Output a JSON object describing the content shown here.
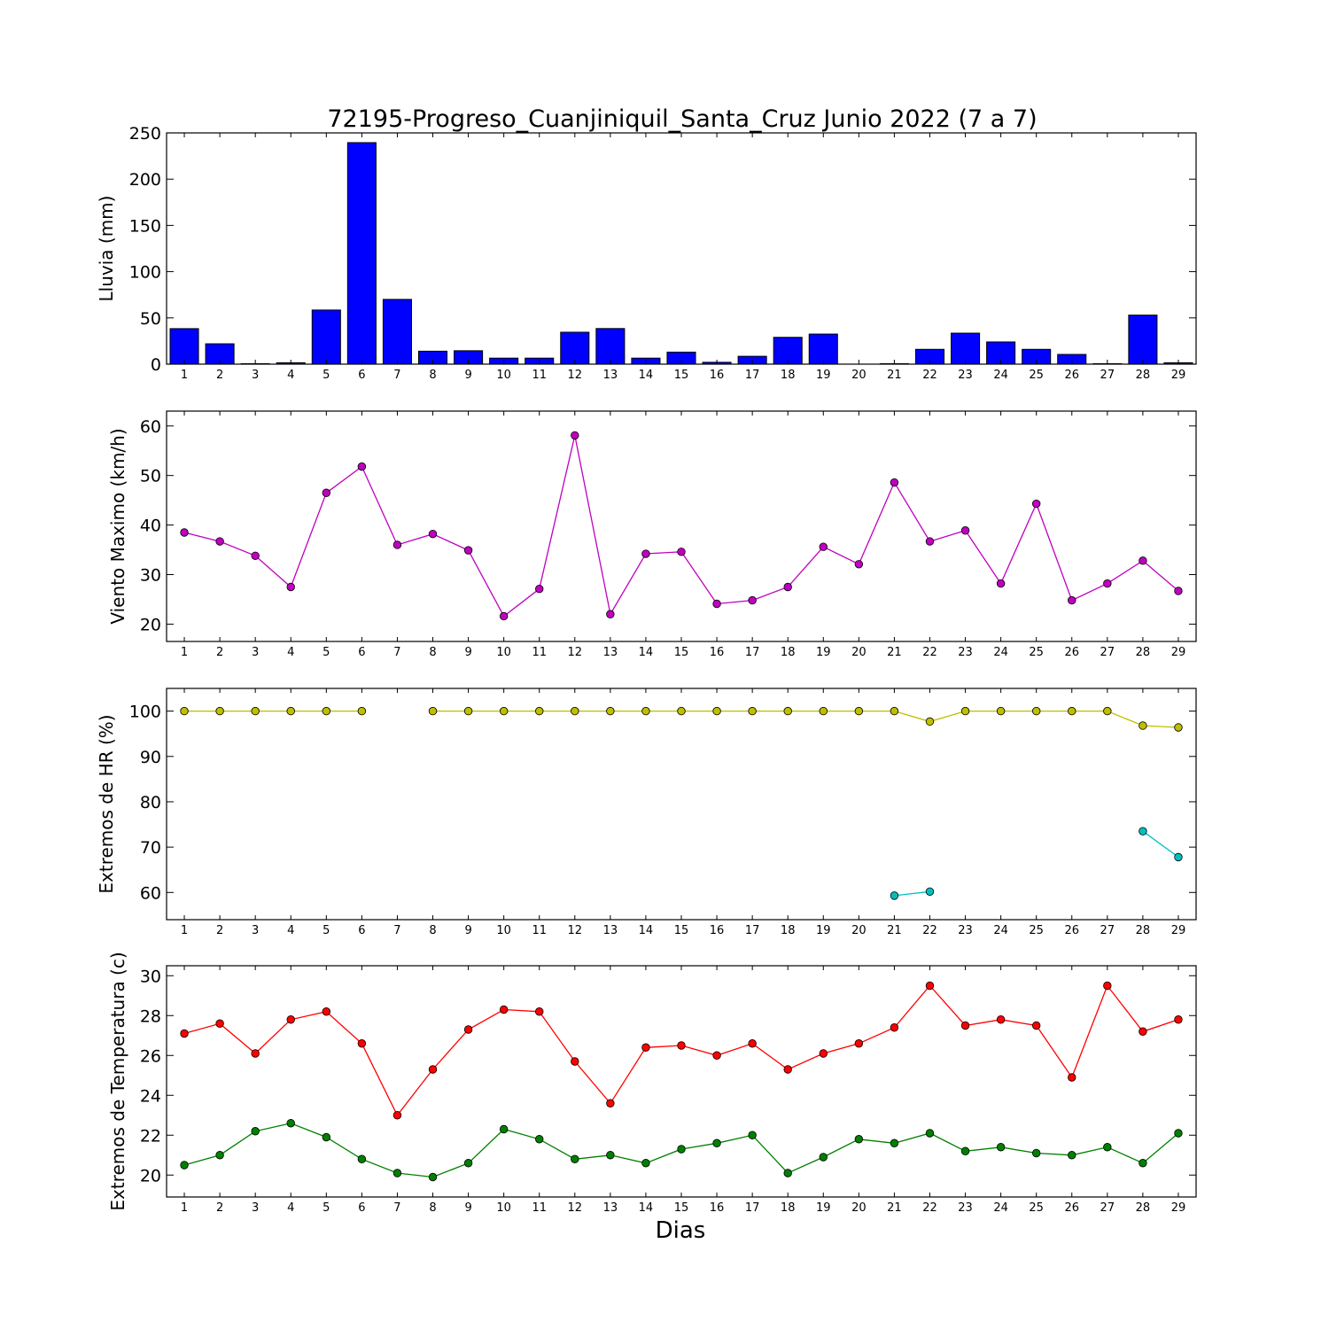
{
  "title": "72195-Progreso_Cuanjiniquil_Santa_Cruz Junio 2022  (7 a 7)",
  "xlabel": "Dias",
  "chart_data": [
    {
      "type": "bar",
      "ylabel": "Lluvia (mm)",
      "categories": [
        1,
        2,
        3,
        4,
        5,
        6,
        7,
        8,
        9,
        10,
        11,
        12,
        13,
        14,
        15,
        16,
        17,
        18,
        19,
        20,
        21,
        22,
        23,
        24,
        25,
        26,
        27,
        28,
        29
      ],
      "ylim": [
        0,
        250
      ],
      "yticks": [
        0,
        50,
        100,
        150,
        200,
        250
      ],
      "series": [
        {
          "color": "#0000ff",
          "values": [
            38.4,
            22,
            0.5,
            1.5,
            58.5,
            239.5,
            70,
            14,
            14.5,
            6.5,
            6.5,
            34.5,
            38.5,
            6.5,
            13,
            2,
            8.5,
            29,
            32.5,
            0,
            0.5,
            16,
            33.5,
            24,
            16,
            10.5,
            0.5,
            53,
            1.5
          ]
        }
      ]
    },
    {
      "type": "line",
      "ylabel": "Viento Maximo (km/h)",
      "x": [
        1,
        2,
        3,
        4,
        5,
        6,
        7,
        8,
        9,
        10,
        11,
        12,
        13,
        14,
        15,
        16,
        17,
        18,
        19,
        20,
        21,
        22,
        23,
        24,
        25,
        26,
        27,
        28,
        29
      ],
      "ylim": [
        16.5,
        63
      ],
      "yticks": [
        20,
        30,
        40,
        50,
        60
      ],
      "series": [
        {
          "color": "#bf00bf",
          "values": [
            38.5,
            36.7,
            33.8,
            27.5,
            46.5,
            51.8,
            36,
            38.2,
            34.9,
            21.6,
            27.1,
            58.1,
            22,
            34.2,
            34.6,
            24.1,
            24.8,
            27.5,
            35.6,
            32.1,
            48.6,
            36.7,
            38.9,
            28.2,
            44.3,
            24.8,
            28.2,
            32.8,
            26.7
          ]
        }
      ]
    },
    {
      "type": "line",
      "ylabel": "Extremos de HR (%)",
      "x": [
        1,
        2,
        3,
        4,
        5,
        6,
        7,
        8,
        9,
        10,
        11,
        12,
        13,
        14,
        15,
        16,
        17,
        18,
        19,
        20,
        21,
        22,
        23,
        24,
        25,
        26,
        27,
        28,
        29
      ],
      "ylim": [
        54,
        105
      ],
      "yticks": [
        60,
        70,
        80,
        90,
        100
      ],
      "series": [
        {
          "color": "#bfbf00",
          "values": [
            100,
            100,
            100,
            100,
            100,
            100,
            null,
            100,
            100,
            100,
            100,
            100,
            100,
            100,
            100,
            100,
            100,
            100,
            100,
            100,
            100,
            97.7,
            100,
            100,
            100,
            100,
            100,
            96.8,
            96.4
          ]
        },
        {
          "color": "#00bfbf",
          "values": [
            null,
            null,
            null,
            null,
            null,
            null,
            null,
            null,
            null,
            null,
            null,
            null,
            null,
            null,
            null,
            null,
            null,
            null,
            null,
            null,
            59.3,
            60.2,
            null,
            null,
            null,
            null,
            null,
            73.5,
            67.8
          ]
        }
      ]
    },
    {
      "type": "line",
      "ylabel": "Extremos de Temperatura (c)",
      "x": [
        1,
        2,
        3,
        4,
        5,
        6,
        7,
        8,
        9,
        10,
        11,
        12,
        13,
        14,
        15,
        16,
        17,
        18,
        19,
        20,
        21,
        22,
        23,
        24,
        25,
        26,
        27,
        28,
        29
      ],
      "ylim": [
        18.9,
        30.5
      ],
      "yticks": [
        20,
        22,
        24,
        26,
        28,
        30
      ],
      "series": [
        {
          "color": "#ff0000",
          "values": [
            27.1,
            27.6,
            26.1,
            27.8,
            28.2,
            26.6,
            23,
            25.3,
            27.3,
            28.3,
            28.2,
            25.7,
            23.6,
            26.4,
            26.5,
            26,
            26.6,
            25.3,
            26.1,
            26.6,
            27.4,
            29.5,
            27.5,
            27.8,
            27.5,
            24.9,
            29.5,
            27.2,
            27.8
          ]
        },
        {
          "color": "#008000",
          "values": [
            20.5,
            21,
            22.2,
            22.6,
            21.9,
            20.8,
            20.1,
            19.9,
            20.6,
            22.3,
            21.8,
            20.8,
            21,
            20.6,
            21.3,
            21.6,
            22,
            20.1,
            20.9,
            21.8,
            21.6,
            22.1,
            21.2,
            21.4,
            21.1,
            21,
            21.4,
            20.6,
            22.1
          ]
        }
      ]
    }
  ]
}
